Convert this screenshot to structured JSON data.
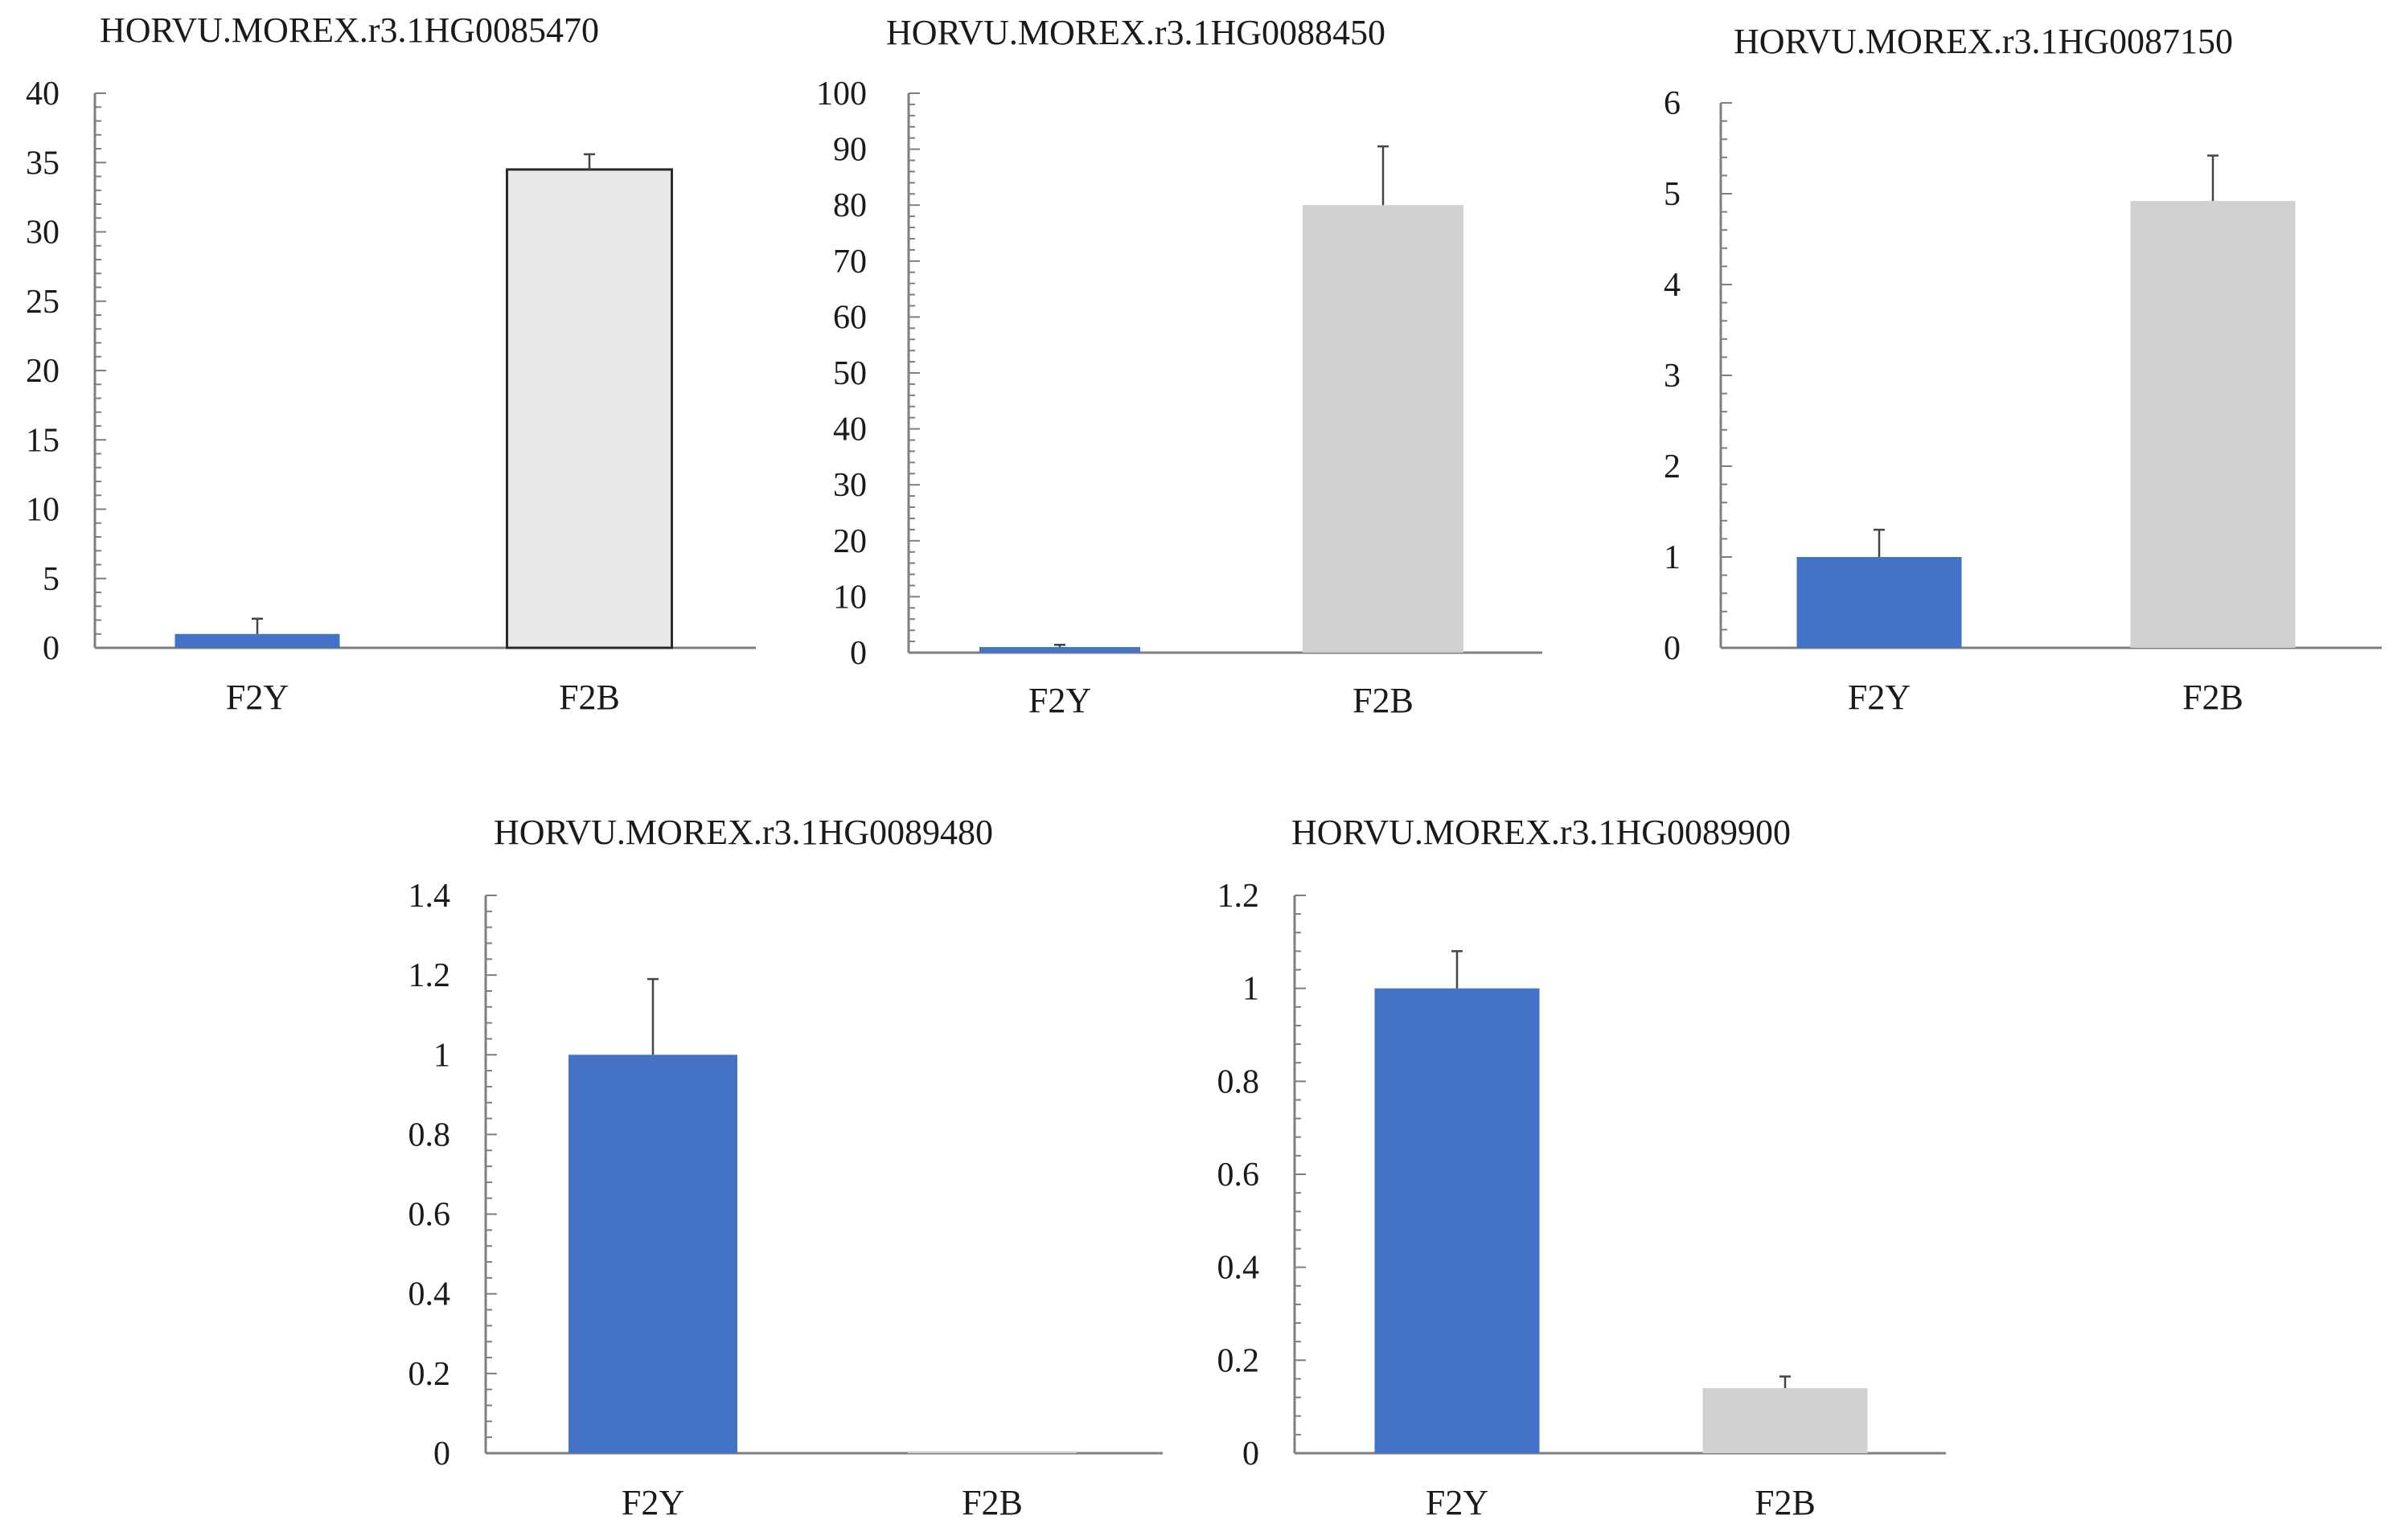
{
  "colors": {
    "f2y": "#4472c4",
    "f2b": "#d0d0d0",
    "f2b_outlined": "#e8e8e8"
  },
  "chart_data": [
    {
      "type": "bar",
      "title": "HORVU.MOREX.r3.1HG0085470",
      "categories": [
        "F2Y",
        "F2B"
      ],
      "values": [
        1.0,
        34.5
      ],
      "errors": [
        1.1,
        1.1
      ],
      "ylim": [
        0,
        40
      ],
      "yticks": [
        0,
        5,
        10,
        15,
        20,
        25,
        30,
        35,
        40
      ],
      "ytick_labels": [
        "0",
        "5",
        "10",
        "15",
        "20",
        "25",
        "30",
        "35",
        "40"
      ],
      "bar_colors": [
        "#4472c4",
        "#e8e8e8"
      ],
      "bar_outline": [
        false,
        true
      ]
    },
    {
      "type": "bar",
      "title": "HORVU.MOREX.r3.1HG0088450",
      "categories": [
        "F2Y",
        "F2B"
      ],
      "values": [
        1.0,
        80.0
      ],
      "errors": [
        0.4,
        10.5
      ],
      "ylim": [
        0,
        100
      ],
      "yticks": [
        0,
        10,
        20,
        30,
        40,
        50,
        60,
        70,
        80,
        90,
        100
      ],
      "ytick_labels": [
        "0",
        "10",
        "20",
        "30",
        "40",
        "50",
        "60",
        "70",
        "80",
        "90",
        "100"
      ],
      "bar_colors": [
        "#4472c4",
        "#d0d0d0"
      ],
      "bar_outline": [
        false,
        false
      ]
    },
    {
      "type": "bar",
      "title": "HORVU.MOREX.r3.1HG0087150",
      "categories": [
        "F2Y",
        "F2B"
      ],
      "values": [
        1.0,
        4.92
      ],
      "errors": [
        0.3,
        0.5
      ],
      "ylim": [
        0,
        6
      ],
      "yticks": [
        0,
        1,
        2,
        3,
        4,
        5,
        6
      ],
      "ytick_labels": [
        "0",
        "1",
        "2",
        "3",
        "4",
        "5",
        "6"
      ],
      "bar_colors": [
        "#4472c4",
        "#d0d0d0"
      ],
      "bar_outline": [
        false,
        false
      ]
    },
    {
      "type": "bar",
      "title": "HORVU.MOREX.r3.1HG0089480",
      "categories": [
        "F2Y",
        "F2B"
      ],
      "values": [
        1.0,
        0.004
      ],
      "errors": [
        0.19,
        0.0
      ],
      "ylim": [
        0,
        1.4
      ],
      "yticks": [
        0,
        0.2,
        0.4,
        0.6,
        0.8,
        1.0,
        1.2,
        1.4
      ],
      "ytick_labels": [
        "0",
        "0.2",
        "0.4",
        "0.6",
        "0.8",
        "1",
        "1.2",
        "1.4"
      ],
      "bar_colors": [
        "#4472c4",
        "#d0d0d0"
      ],
      "bar_outline": [
        false,
        false
      ]
    },
    {
      "type": "bar",
      "title": "HORVU.MOREX.r3.1HG0089900",
      "categories": [
        "F2Y",
        "F2B"
      ],
      "values": [
        1.0,
        0.14
      ],
      "errors": [
        0.08,
        0.025
      ],
      "ylim": [
        0,
        1.2
      ],
      "yticks": [
        0,
        0.2,
        0.4,
        0.6,
        0.8,
        1.0,
        1.2
      ],
      "ytick_labels": [
        "0",
        "0.2",
        "0.4",
        "0.6",
        "0.8",
        "1",
        "1.2"
      ],
      "bar_colors": [
        "#4472c4",
        "#d0d0d0"
      ],
      "bar_outline": [
        false,
        false
      ]
    }
  ]
}
